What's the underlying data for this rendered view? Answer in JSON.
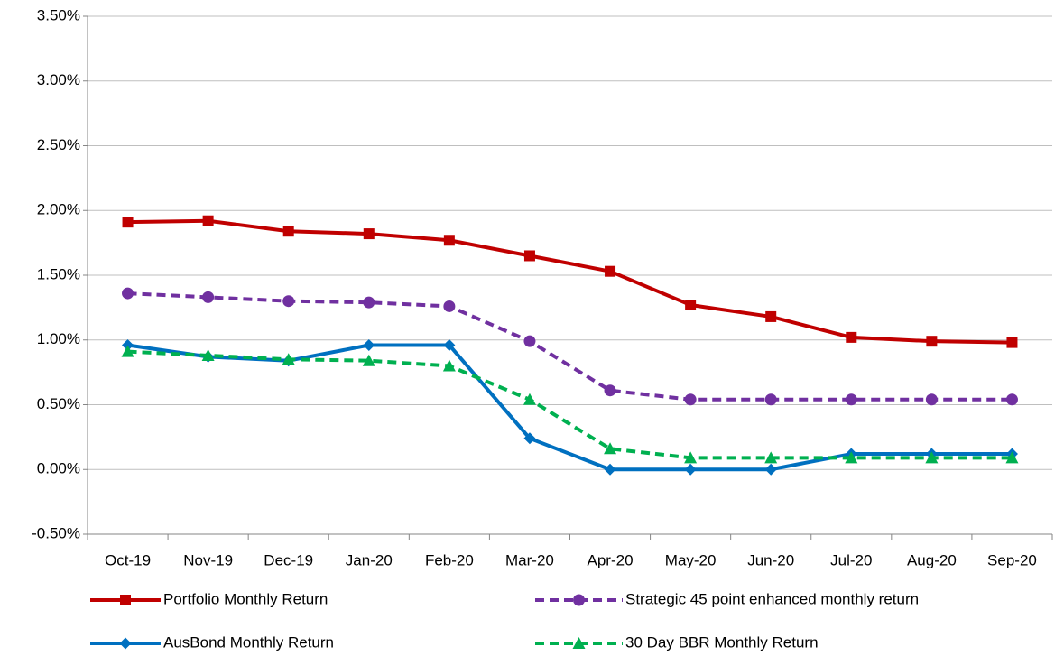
{
  "chart_data": {
    "type": "line",
    "categories": [
      "Oct-19",
      "Nov-19",
      "Dec-19",
      "Jan-20",
      "Feb-20",
      "Mar-20",
      "Apr-20",
      "May-20",
      "Jun-20",
      "Jul-20",
      "Aug-20",
      "Sep-20"
    ],
    "series": [
      {
        "name": "Portfolio Monthly Return",
        "color": "#c00000",
        "marker": "square",
        "dashed": false,
        "values": [
          1.91,
          1.92,
          1.84,
          1.82,
          1.77,
          1.65,
          1.53,
          1.27,
          1.18,
          1.02,
          0.99,
          0.98
        ]
      },
      {
        "name": "Strategic 45 point enhanced monthly return",
        "color": "#7030a0",
        "marker": "circle",
        "dashed": true,
        "values": [
          1.36,
          1.33,
          1.3,
          1.29,
          1.26,
          0.99,
          0.61,
          0.54,
          0.54,
          0.54,
          0.54,
          0.54
        ]
      },
      {
        "name": "AusBond Monthly Return",
        "color": "#0070c0",
        "marker": "diamond",
        "dashed": false,
        "values": [
          0.96,
          0.87,
          0.84,
          0.96,
          0.96,
          0.24,
          0.0,
          0.0,
          0.0,
          0.12,
          0.12,
          0.12
        ]
      },
      {
        "name": "30 Day BBR Monthly Return",
        "color": "#00b050",
        "marker": "triangle",
        "dashed": true,
        "values": [
          0.91,
          0.88,
          0.85,
          0.84,
          0.8,
          0.54,
          0.16,
          0.09,
          0.09,
          0.09,
          0.09,
          0.09
        ]
      }
    ],
    "ylim": [
      -0.5,
      3.5
    ],
    "yticks": [
      {
        "value": -0.5,
        "label": "-0.50%"
      },
      {
        "value": 0,
        "label": "0.00%"
      },
      {
        "value": 0.5,
        "label": "0.50%"
      },
      {
        "value": 1,
        "label": "1.00%"
      },
      {
        "value": 1.5,
        "label": "1.50%"
      },
      {
        "value": 2,
        "label": "2.00%"
      },
      {
        "value": 2.5,
        "label": "2.50%"
      },
      {
        "value": 3,
        "label": "3.00%"
      },
      {
        "value": 3.5,
        "label": "3.50%"
      }
    ],
    "grid": true,
    "legend": "bottom"
  }
}
